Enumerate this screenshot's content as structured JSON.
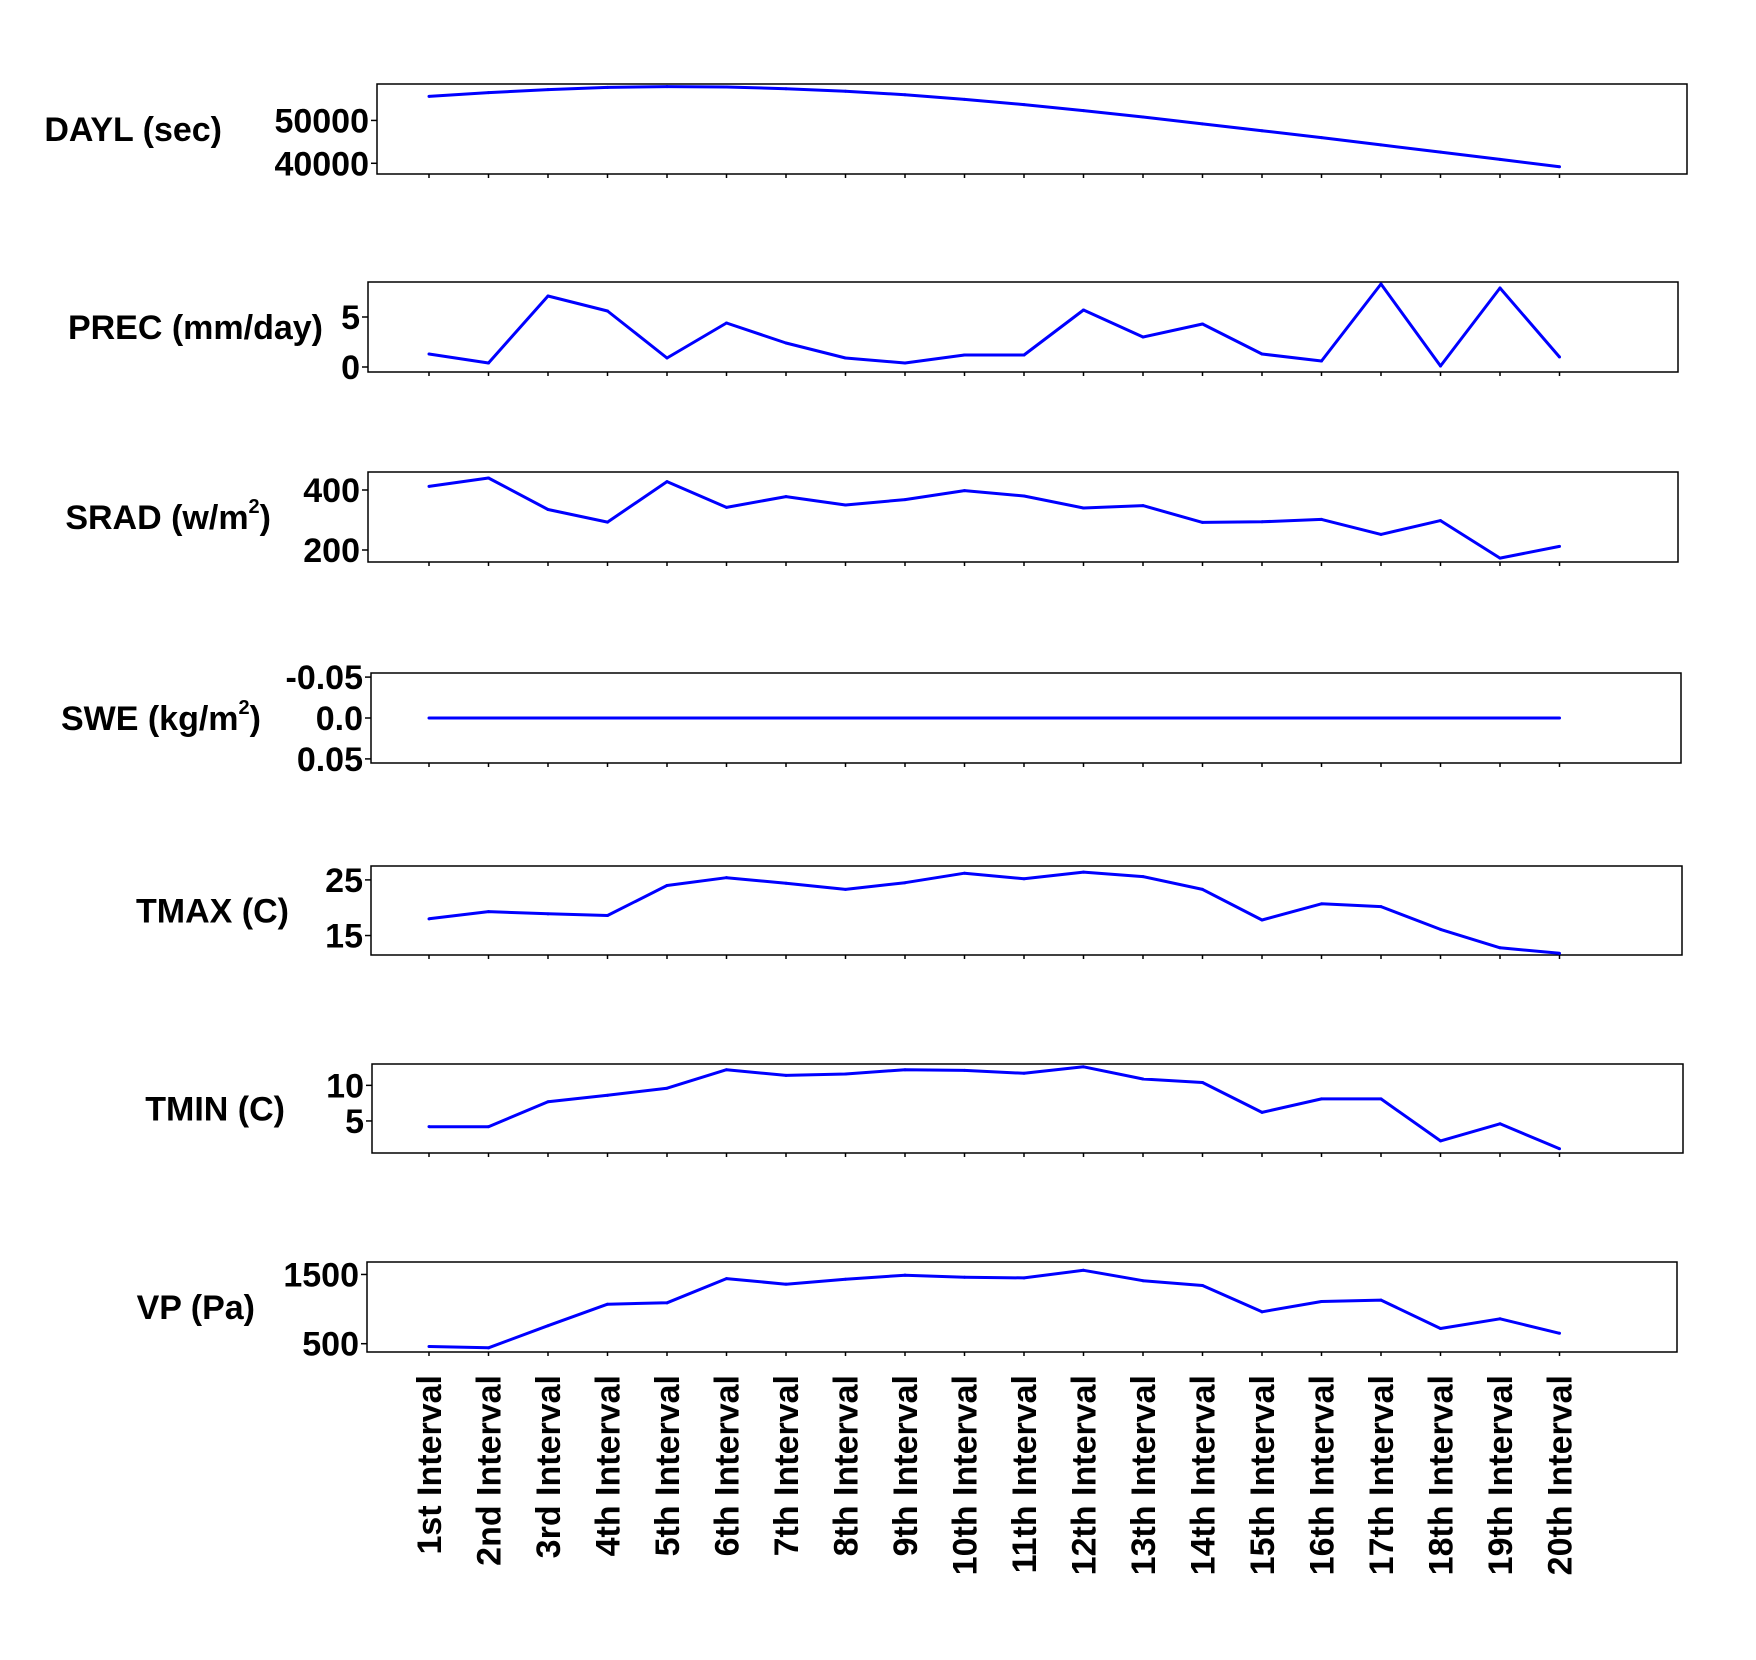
{
  "chart_data": {
    "type": "line",
    "line_color": "#0000ff",
    "categories": [
      "1st  Interval",
      "2nd Interval",
      "3rd  Interval",
      "4th  Interval",
      "5th  Interval",
      "6th  Interval",
      "7th  Interval",
      "8th  Interval",
      "9th  Interval",
      "10th  Interval",
      "11th  Interval",
      "12th  Interval",
      "13th  Interval",
      "14th  Interval",
      "15th  Interval",
      "16th  Interval",
      "17th  Interval",
      "18th  Interval",
      "19th  Interval",
      "20th  Interval"
    ],
    "panels": [
      {
        "label": "DAYL (sec)",
        "superscript": "",
        "label_suffix": "",
        "ylim": [
          37500,
          58500
        ],
        "yticks": [
          50000,
          40000
        ],
        "ytick_labels": [
          "50000",
          "40000"
        ],
        "values": [
          55600,
          56500,
          57200,
          57700,
          57900,
          57800,
          57400,
          56800,
          56000,
          54900,
          53700,
          52300,
          50800,
          49200,
          47600,
          46000,
          44300,
          42600,
          40900,
          39200
        ]
      },
      {
        "label": "PREC (mm/day)",
        "superscript": "",
        "label_suffix": "",
        "ylim": [
          -0.5,
          8.5
        ],
        "yticks": [
          5,
          0
        ],
        "ytick_labels": [
          "5",
          "0"
        ],
        "values": [
          1.3,
          0.4,
          7.1,
          5.6,
          0.9,
          4.4,
          2.4,
          0.9,
          0.4,
          1.2,
          1.2,
          5.7,
          3.0,
          4.3,
          1.3,
          0.6,
          8.3,
          0.1,
          7.9,
          1.0
        ]
      },
      {
        "label": "SRAD (w/m",
        "superscript": "2",
        "label_suffix": ")",
        "ylim": [
          160,
          460
        ],
        "yticks": [
          400,
          200
        ],
        "ytick_labels": [
          "400",
          "200"
        ],
        "values": [
          412,
          440,
          335,
          293,
          428,
          342,
          378,
          350,
          368,
          398,
          380,
          340,
          348,
          292,
          294,
          302,
          252,
          298,
          173,
          212
        ]
      },
      {
        "label": "SWE (kg/m",
        "superscript": "2",
        "label_suffix": ")",
        "ylim": [
          -0.055,
          0.055
        ],
        "inverted": true,
        "yticks": [
          -0.05,
          0.0,
          0.05
        ],
        "ytick_labels": [
          "-0.05",
          "0.0",
          "0.05"
        ],
        "values": [
          0,
          0,
          0,
          0,
          0,
          0,
          0,
          0,
          0,
          0,
          0,
          0,
          0,
          0,
          0,
          0,
          0,
          0,
          0,
          0
        ]
      },
      {
        "label": "TMAX (C)",
        "superscript": "",
        "label_suffix": "",
        "ylim": [
          11.5,
          27.5
        ],
        "yticks": [
          25,
          15
        ],
        "ytick_labels": [
          "25",
          "15"
        ],
        "values": [
          18.0,
          19.3,
          18.9,
          18.6,
          24.0,
          25.4,
          24.4,
          23.3,
          24.5,
          26.2,
          25.2,
          26.4,
          25.6,
          23.3,
          17.8,
          20.7,
          20.2,
          16.1,
          12.8,
          11.8
        ]
      },
      {
        "label": "TMIN (C)",
        "superscript": "",
        "label_suffix": "",
        "ylim": [
          0.5,
          13.0
        ],
        "yticks": [
          10,
          5
        ],
        "ytick_labels": [
          "10",
          "5"
        ],
        "values": [
          4.2,
          4.2,
          7.7,
          8.6,
          9.6,
          12.2,
          11.4,
          11.6,
          12.2,
          12.1,
          11.7,
          12.6,
          10.9,
          10.4,
          6.2,
          8.1,
          8.1,
          2.2,
          4.6,
          1.1
        ]
      },
      {
        "label": "VP (Pa)",
        "superscript": "",
        "label_suffix": "",
        "ylim": [
          380,
          1680
        ],
        "yticks": [
          1500,
          500
        ],
        "ytick_labels": [
          "1500",
          "500"
        ],
        "values": [
          460,
          440,
          760,
          1070,
          1090,
          1440,
          1360,
          1430,
          1490,
          1460,
          1450,
          1560,
          1410,
          1340,
          960,
          1110,
          1130,
          720,
          860,
          650
        ]
      }
    ]
  }
}
